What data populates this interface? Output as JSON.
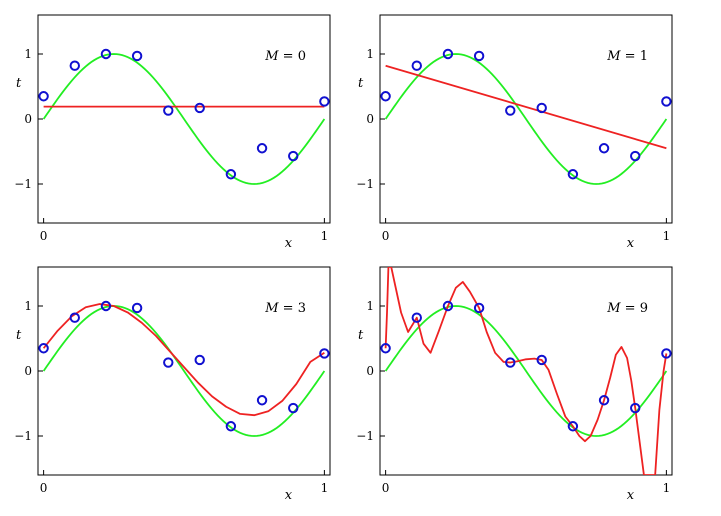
{
  "chart_data": [
    {
      "type": "line",
      "label": "M = 0",
      "label_parts": {
        "var": "M",
        "eq": " = ",
        "val": "0"
      },
      "xlabel": "x",
      "ylabel": "t",
      "xlim": [
        -0.02,
        1.02
      ],
      "ylim": [
        -1.6,
        1.6
      ],
      "xticks": [
        0,
        1
      ],
      "yticks": [
        -1,
        0,
        1
      ],
      "grid": false,
      "points": {
        "x": [
          0,
          0.111,
          0.222,
          0.333,
          0.444,
          0.556,
          0.667,
          0.778,
          0.889,
          1
        ],
        "y": [
          0.35,
          0.82,
          1.0,
          0.97,
          0.13,
          0.17,
          -0.85,
          -0.45,
          -0.57,
          0.27
        ]
      },
      "true_curve": "sin(2*pi*x)",
      "fit": {
        "x": [
          0,
          1
        ],
        "y": [
          0.19,
          0.19
        ]
      },
      "colors": {
        "points": "#1010d0",
        "true_curve": "#22ee22",
        "fit": "#ee2222"
      }
    },
    {
      "type": "line",
      "label": "M = 1",
      "label_parts": {
        "var": "M",
        "eq": " = ",
        "val": "1"
      },
      "xlabel": "x",
      "ylabel": "t",
      "xlim": [
        -0.02,
        1.02
      ],
      "ylim": [
        -1.6,
        1.6
      ],
      "xticks": [
        0,
        1
      ],
      "yticks": [
        -1,
        0,
        1
      ],
      "grid": false,
      "points": {
        "x": [
          0,
          0.111,
          0.222,
          0.333,
          0.444,
          0.556,
          0.667,
          0.778,
          0.889,
          1
        ],
        "y": [
          0.35,
          0.82,
          1.0,
          0.97,
          0.13,
          0.17,
          -0.85,
          -0.45,
          -0.57,
          0.27
        ]
      },
      "true_curve": "sin(2*pi*x)",
      "fit": {
        "x": [
          0,
          1
        ],
        "y": [
          0.82,
          -0.45
        ]
      },
      "colors": {
        "points": "#1010d0",
        "true_curve": "#22ee22",
        "fit": "#ee2222"
      }
    },
    {
      "type": "line",
      "label": "M = 3",
      "label_parts": {
        "var": "M",
        "eq": " = ",
        "val": "3"
      },
      "xlabel": "x",
      "ylabel": "t",
      "xlim": [
        -0.02,
        1.02
      ],
      "ylim": [
        -1.6,
        1.6
      ],
      "xticks": [
        0,
        1
      ],
      "yticks": [
        -1,
        0,
        1
      ],
      "grid": false,
      "points": {
        "x": [
          0,
          0.111,
          0.222,
          0.333,
          0.444,
          0.556,
          0.667,
          0.778,
          0.889,
          1
        ],
        "y": [
          0.35,
          0.82,
          1.0,
          0.97,
          0.13,
          0.17,
          -0.85,
          -0.45,
          -0.57,
          0.27
        ]
      },
      "true_curve": "sin(2*pi*x)",
      "fit": {
        "x": [
          0,
          0.05,
          0.1,
          0.15,
          0.2,
          0.25,
          0.3,
          0.35,
          0.4,
          0.45,
          0.5,
          0.55,
          0.6,
          0.65,
          0.7,
          0.75,
          0.8,
          0.85,
          0.9,
          0.95,
          1
        ],
        "y": [
          0.35,
          0.62,
          0.84,
          0.98,
          1.03,
          1.0,
          0.9,
          0.74,
          0.54,
          0.3,
          0.06,
          -0.18,
          -0.39,
          -0.55,
          -0.66,
          -0.68,
          -0.62,
          -0.46,
          -0.2,
          0.14,
          0.28
        ]
      },
      "colors": {
        "points": "#1010d0",
        "true_curve": "#22ee22",
        "fit": "#ee2222"
      }
    },
    {
      "type": "line",
      "label": "M = 9",
      "label_parts": {
        "var": "M",
        "eq": " = ",
        "val": "9"
      },
      "xlabel": "x",
      "ylabel": "t",
      "xlim": [
        -0.02,
        1.02
      ],
      "ylim": [
        -1.6,
        1.6
      ],
      "xticks": [
        0,
        1
      ],
      "yticks": [
        -1,
        0,
        1
      ],
      "grid": false,
      "points": {
        "x": [
          0,
          0.111,
          0.222,
          0.333,
          0.444,
          0.556,
          0.667,
          0.778,
          0.889,
          1
        ],
        "y": [
          0.35,
          0.82,
          1.0,
          0.97,
          0.13,
          0.17,
          -0.85,
          -0.45,
          -0.57,
          0.27
        ]
      },
      "true_curve": "sin(2*pi*x)",
      "fit": {
        "x": [
          0,
          0.005,
          0.01,
          0.02,
          0.035,
          0.055,
          0.08,
          0.111,
          0.135,
          0.16,
          0.19,
          0.222,
          0.25,
          0.275,
          0.3,
          0.333,
          0.36,
          0.39,
          0.42,
          0.444,
          0.47,
          0.5,
          0.53,
          0.556,
          0.58,
          0.61,
          0.64,
          0.667,
          0.69,
          0.71,
          0.73,
          0.755,
          0.778,
          0.8,
          0.82,
          0.84,
          0.86,
          0.875,
          0.889,
          0.905,
          0.92,
          0.935,
          0.95,
          0.96,
          0.975,
          0.99,
          1
        ],
        "y": [
          0.35,
          0.9,
          1.6,
          1.6,
          1.3,
          0.9,
          0.6,
          0.82,
          0.42,
          0.28,
          0.62,
          1.0,
          1.28,
          1.37,
          1.22,
          0.97,
          0.6,
          0.28,
          0.14,
          0.13,
          0.15,
          0.18,
          0.19,
          0.17,
          0.02,
          -0.35,
          -0.7,
          -0.85,
          -1.0,
          -1.08,
          -1.0,
          -0.75,
          -0.45,
          -0.1,
          0.25,
          0.37,
          0.2,
          -0.15,
          -0.57,
          -1.1,
          -1.6,
          -1.6,
          -1.6,
          -1.6,
          -0.6,
          0.0,
          0.27
        ]
      },
      "colors": {
        "points": "#1010d0",
        "true_curve": "#22ee22",
        "fit": "#ee2222"
      }
    }
  ]
}
